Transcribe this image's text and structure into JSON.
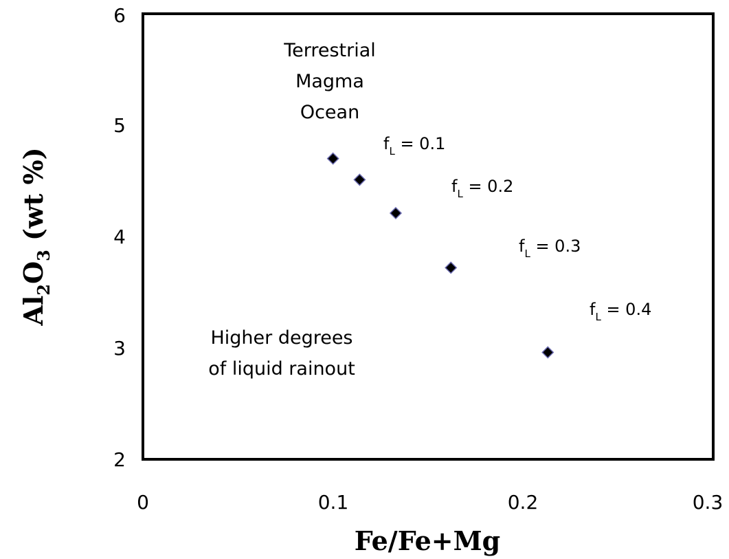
{
  "chart_data": {
    "type": "scatter",
    "xlabel": "Fe/Fe+Mg",
    "ylabel": {
      "p1": "Al",
      "s1": "2",
      "p2": "O",
      "s2": "3",
      "p3": " (wt %)"
    },
    "xlim": [
      0,
      0.3
    ],
    "ylim": [
      2,
      6
    ],
    "xticks": [
      "0",
      "0.1",
      "0.2",
      "0.3"
    ],
    "yticks": [
      "2",
      "3",
      "4",
      "5",
      "6"
    ],
    "grid": false,
    "legend": "none",
    "marker_color": "#000000",
    "marker_edge_color": "#6a6ab0",
    "points": [
      {
        "x": 0.1,
        "y": 4.7
      },
      {
        "x": 0.114,
        "y": 4.51
      },
      {
        "x": 0.133,
        "y": 4.21
      },
      {
        "x": 0.162,
        "y": 3.72
      },
      {
        "x": 0.213,
        "y": 2.96
      }
    ],
    "annotations": {
      "magma_ocean": [
        "Terrestrial",
        "Magma",
        "Ocean"
      ],
      "rainout": [
        "Higher degrees",
        "of liquid rainout"
      ],
      "fl_labels": [
        {
          "f": "f",
          "sub": "L",
          "rest": " = 0.1"
        },
        {
          "f": "f",
          "sub": "L",
          "rest": " = 0.2"
        },
        {
          "f": "f",
          "sub": "L",
          "rest": " = 0.3"
        },
        {
          "f": "f",
          "sub": "L",
          "rest": " = 0.4"
        }
      ]
    }
  }
}
